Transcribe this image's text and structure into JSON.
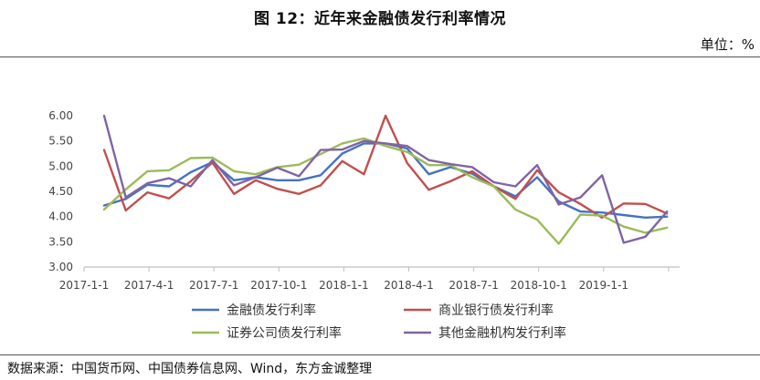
{
  "title": "图 12：近年来金融债发行利率情况",
  "unit": "单位：%",
  "source": "数据来源：中国货币网、中国债券信息网、Wind，东方金诚整理",
  "chart_data": {
    "type": "line",
    "title": "",
    "xlabel": "",
    "ylabel": "",
    "ylim": [
      3.0,
      6.0
    ],
    "yticks": [
      "6.00",
      "5.50",
      "5.00",
      "4.50",
      "4.00",
      "3.50",
      "3.00"
    ],
    "xtick_labels": [
      "2017-1-1",
      "2017-4-1",
      "2017-7-1",
      "2017-10-1",
      "2018-1-1",
      "2018-4-1",
      "2018-7-1",
      "2018-10-1",
      "2019-1-1"
    ],
    "grid": false,
    "legend_position": "bottom",
    "x": [
      "2017-01",
      "2017-02",
      "2017-03",
      "2017-04",
      "2017-05",
      "2017-06",
      "2017-07",
      "2017-08",
      "2017-09",
      "2017-10",
      "2017-11",
      "2017-12",
      "2018-01",
      "2018-02",
      "2018-03",
      "2018-04",
      "2018-05",
      "2018-06",
      "2018-07",
      "2018-08",
      "2018-09",
      "2018-10",
      "2018-11",
      "2018-12",
      "2019-01",
      "2019-02",
      "2019-03"
    ],
    "series": [
      {
        "name": "金融债发行利率",
        "color": "#4472C4",
        "values": [
          4.22,
          4.35,
          4.63,
          4.6,
          4.88,
          5.08,
          4.72,
          4.78,
          4.72,
          4.72,
          4.82,
          5.25,
          5.45,
          5.45,
          5.35,
          4.84,
          4.98,
          4.85,
          4.6,
          4.4,
          4.78,
          4.3,
          4.1,
          4.08,
          4.03,
          3.98,
          4.0
        ]
      },
      {
        "name": "商业银行债发行利率",
        "color": "#C0504D",
        "values": [
          5.32,
          4.12,
          4.48,
          4.36,
          4.7,
          5.07,
          4.45,
          4.72,
          4.55,
          4.45,
          4.62,
          5.1,
          4.84,
          6.0,
          5.06,
          4.53,
          4.7,
          4.9,
          4.6,
          4.35,
          4.92,
          4.48,
          4.25,
          3.98,
          4.26,
          4.25,
          4.06
        ]
      },
      {
        "name": "证券公司债发行利率",
        "color": "#9BBB59",
        "values": [
          4.14,
          4.54,
          4.9,
          4.92,
          5.16,
          5.17,
          4.9,
          4.84,
          4.98,
          5.03,
          5.24,
          5.45,
          5.55,
          5.4,
          5.28,
          5.02,
          5.02,
          4.78,
          4.6,
          4.14,
          3.94,
          3.46,
          4.04,
          4.02,
          3.8,
          3.68,
          3.78
        ]
      },
      {
        "name": "其他金融机构发行利率",
        "color": "#8064A2",
        "values": [
          6.0,
          4.38,
          4.66,
          4.76,
          4.6,
          5.12,
          4.62,
          4.78,
          4.97,
          4.8,
          5.32,
          5.33,
          5.5,
          5.45,
          5.4,
          5.12,
          5.04,
          4.98,
          4.68,
          4.6,
          5.02,
          4.24,
          4.38,
          4.82,
          3.48,
          3.6,
          4.1
        ]
      }
    ]
  }
}
